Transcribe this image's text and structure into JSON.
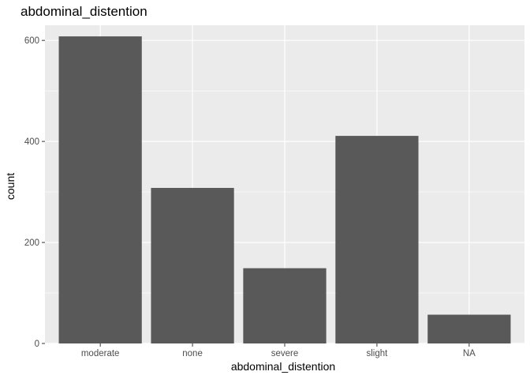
{
  "chart_data": {
    "type": "bar",
    "title": "abdominal_distention",
    "xlabel": "abdominal_distention",
    "ylabel": "count",
    "categories": [
      "moderate",
      "none",
      "severe",
      "slight",
      "NA"
    ],
    "values": [
      608,
      308,
      149,
      411,
      57
    ],
    "ylim": [
      0,
      630
    ],
    "yticks": [
      0,
      200,
      400,
      600
    ],
    "grid": true,
    "legend": "none",
    "colors": {
      "bar": "#595959",
      "panel_background": "#ebebeb",
      "grid_major": "#ffffff",
      "tick_label": "#4d4d4d"
    }
  }
}
